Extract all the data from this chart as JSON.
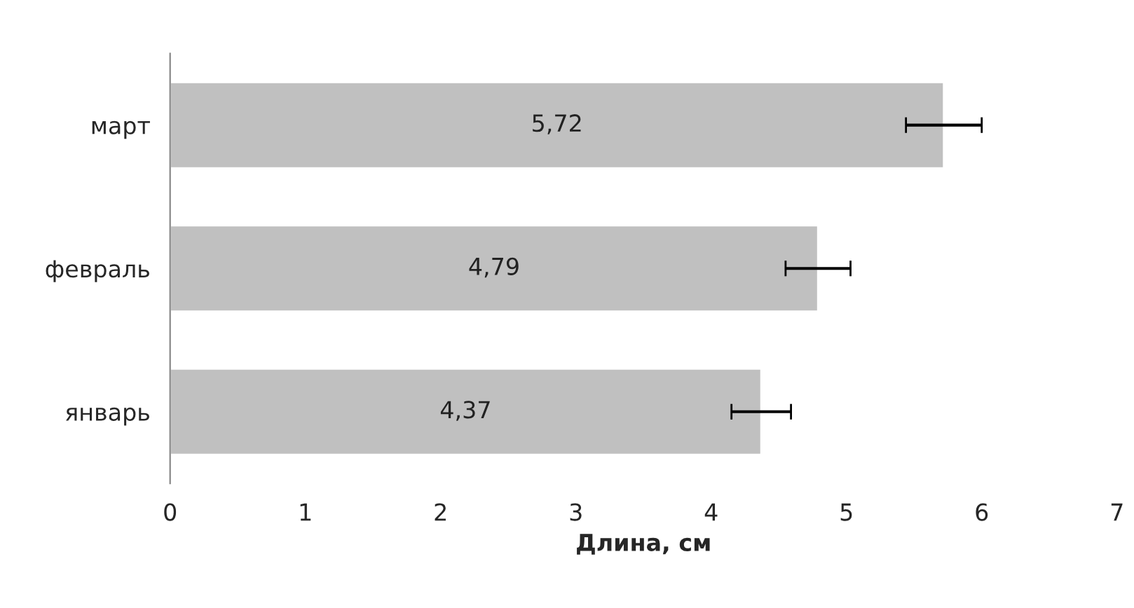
{
  "chart_data": {
    "type": "bar",
    "orientation": "horizontal",
    "xlabel": "Длина, см",
    "categories": [
      "март",
      "февраль",
      "январь"
    ],
    "values": [
      5.72,
      4.79,
      4.37
    ],
    "errors": [
      0.28,
      0.24,
      0.22
    ],
    "value_labels": [
      "5,72",
      "4,79",
      "4,37"
    ],
    "color": "#c0c0c0",
    "xlim": [
      0,
      7
    ],
    "xticks": [
      0,
      1,
      2,
      3,
      4,
      5,
      6,
      7
    ],
    "grid": false,
    "legend": false
  }
}
